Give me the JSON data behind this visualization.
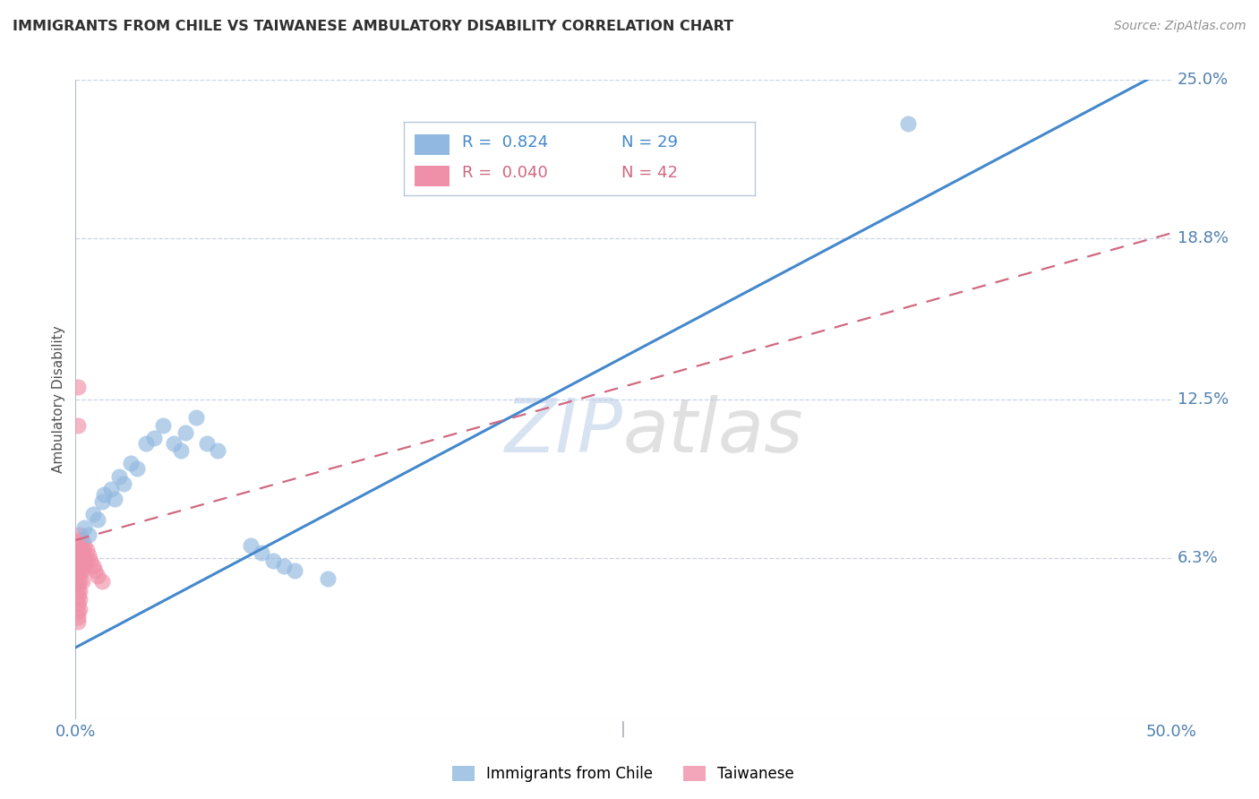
{
  "title": "IMMIGRANTS FROM CHILE VS TAIWANESE AMBULATORY DISABILITY CORRELATION CHART",
  "source": "Source: ZipAtlas.com",
  "ylabel": "Ambulatory Disability",
  "xlim": [
    0.0,
    0.5
  ],
  "ylim": [
    0.0,
    0.25
  ],
  "y_tick_labels_right": [
    "6.3%",
    "12.5%",
    "18.8%",
    "25.0%"
  ],
  "y_ticks_right": [
    0.063,
    0.125,
    0.188,
    0.25
  ],
  "watermark": "ZIPatlas",
  "chile_color": "#90b8e0",
  "taiwanese_color": "#f090a8",
  "chile_trendline_color": "#4488cc",
  "taiwanese_trendline_color": "#d06880",
  "grid_color": "#c8d4e4",
  "background_color": "#ffffff",
  "title_color": "#303030",
  "axis_label_color": "#5080b0",
  "right_label_color": "#5080b0",
  "chile_points": [
    [
      0.004,
      0.075
    ],
    [
      0.006,
      0.072
    ],
    [
      0.008,
      0.08
    ],
    [
      0.01,
      0.078
    ],
    [
      0.012,
      0.085
    ],
    [
      0.013,
      0.088
    ],
    [
      0.016,
      0.09
    ],
    [
      0.018,
      0.086
    ],
    [
      0.02,
      0.095
    ],
    [
      0.022,
      0.092
    ],
    [
      0.025,
      0.1
    ],
    [
      0.028,
      0.098
    ],
    [
      0.032,
      0.108
    ],
    [
      0.036,
      0.11
    ],
    [
      0.04,
      0.115
    ],
    [
      0.045,
      0.108
    ],
    [
      0.048,
      0.105
    ],
    [
      0.05,
      0.112
    ],
    [
      0.055,
      0.118
    ],
    [
      0.06,
      0.108
    ],
    [
      0.065,
      0.105
    ],
    [
      0.08,
      0.068
    ],
    [
      0.085,
      0.065
    ],
    [
      0.09,
      0.062
    ],
    [
      0.095,
      0.06
    ],
    [
      0.1,
      0.058
    ],
    [
      0.115,
      0.055
    ],
    [
      0.38,
      0.233
    ]
  ],
  "taiwanese_points": [
    [
      0.001,
      0.13
    ],
    [
      0.001,
      0.115
    ],
    [
      0.001,
      0.07
    ],
    [
      0.001,
      0.068
    ],
    [
      0.001,
      0.065
    ],
    [
      0.001,
      0.062
    ],
    [
      0.001,
      0.06
    ],
    [
      0.001,
      0.058
    ],
    [
      0.001,
      0.055
    ],
    [
      0.001,
      0.053
    ],
    [
      0.001,
      0.05
    ],
    [
      0.001,
      0.048
    ],
    [
      0.001,
      0.045
    ],
    [
      0.001,
      0.042
    ],
    [
      0.001,
      0.04
    ],
    [
      0.001,
      0.038
    ],
    [
      0.002,
      0.072
    ],
    [
      0.002,
      0.068
    ],
    [
      0.002,
      0.065
    ],
    [
      0.002,
      0.062
    ],
    [
      0.002,
      0.06
    ],
    [
      0.002,
      0.057
    ],
    [
      0.002,
      0.054
    ],
    [
      0.002,
      0.05
    ],
    [
      0.002,
      0.047
    ],
    [
      0.002,
      0.043
    ],
    [
      0.003,
      0.07
    ],
    [
      0.003,
      0.066
    ],
    [
      0.003,
      0.062
    ],
    [
      0.003,
      0.058
    ],
    [
      0.003,
      0.054
    ],
    [
      0.004,
      0.068
    ],
    [
      0.004,
      0.064
    ],
    [
      0.004,
      0.06
    ],
    [
      0.005,
      0.066
    ],
    [
      0.005,
      0.062
    ],
    [
      0.006,
      0.064
    ],
    [
      0.007,
      0.062
    ],
    [
      0.008,
      0.06
    ],
    [
      0.009,
      0.058
    ],
    [
      0.01,
      0.056
    ],
    [
      0.012,
      0.054
    ]
  ],
  "chile_trend_x": [
    0.0,
    0.5
  ],
  "chile_trend_y": [
    0.028,
    0.255
  ],
  "taiwanese_trend_x": [
    0.0,
    0.5
  ],
  "taiwanese_trend_y": [
    0.07,
    0.19
  ]
}
